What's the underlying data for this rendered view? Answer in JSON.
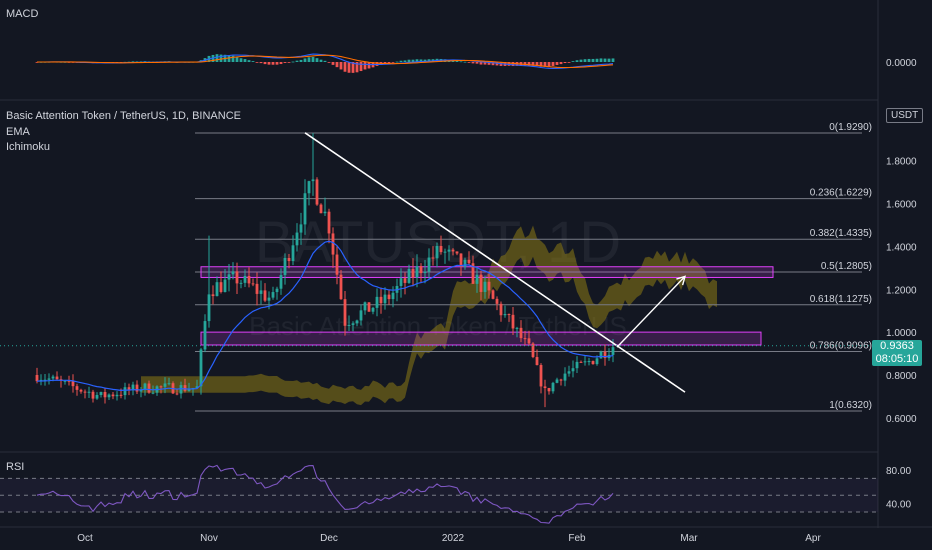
{
  "watermark": {
    "symbol": "BATUSDT, 1D",
    "name": "Basic Attention Token / TetherUS"
  },
  "macd": {
    "title": "MACD",
    "value_label": "0.0000"
  },
  "main": {
    "title": "Basic Attention Token / TetherUS, 1D, BINANCE",
    "indicator_1": "EMA",
    "indicator_2": "Ichimoku",
    "unit": "USDT",
    "last_price": "0.9363",
    "countdown": "08:05:10"
  },
  "rsi": {
    "title": "RSI",
    "upper_label": "80.00",
    "lower_label": "40.00"
  },
  "colors": {
    "background": "#131722",
    "up": "#26a69a",
    "down": "#ef5350",
    "fib_line": "#787b86",
    "zone": "#e040fb",
    "cloud": "#8d7a14",
    "ema": "#2962ff",
    "rsi": "#7e57c2",
    "macd_line": "#2962ff",
    "signal_line": "#ff6d00"
  },
  "chart_data": [
    {
      "type": "candlestick",
      "title": "Basic Attention Token / TetherUS, 1D, BINANCE",
      "y_axis_ticks": [
        "1.8000",
        "1.6000",
        "1.4000",
        "1.2000",
        "1.0000",
        "0.8000",
        "0.6000"
      ],
      "ylim": [
        0.52,
        1.98
      ],
      "x_axis_ticks": [
        "Oct",
        "Nov",
        "Dec",
        "2022",
        "Feb",
        "Mar",
        "Apr"
      ],
      "candles_range": [
        "2021-09-19",
        "2022-02-10"
      ],
      "key_levels": {
        "start_close": 0.8,
        "november_breakout_high": 1.45,
        "all_time_high": 1.929,
        "late_december_high": 1.45,
        "january_low": 0.65,
        "last_close": 0.9363
      },
      "fibonacci_levels": [
        {
          "label": "0(1.9290)",
          "value": 1.929
        },
        {
          "label": "0.236(1.6229)",
          "value": 1.6229
        },
        {
          "label": "0.382(1.4335)",
          "value": 1.4335
        },
        {
          "label": "0.5(1.2805)",
          "value": 1.2805
        },
        {
          "label": "0.618(1.1275)",
          "value": 1.1275
        },
        {
          "label": "0.786(0.9096)",
          "value": 0.9096
        },
        {
          "label": "1(0.6320)",
          "value": 0.632
        }
      ],
      "zones": [
        {
          "from": "2021-10-30",
          "to": "2022-03-22",
          "low": 1.255,
          "high": 1.305
        },
        {
          "from": "2021-10-30",
          "to": "2022-03-19",
          "low": 0.94,
          "high": 1.0
        }
      ],
      "trendline": {
        "from": {
          "date": "2021-11-25",
          "price": 1.93
        },
        "to": {
          "date": "2022-02-28",
          "price": 0.72
        }
      },
      "projection_arrow": {
        "from": {
          "date": "2022-02-11",
          "price": 0.93
        },
        "to": {
          "date": "2022-02-28",
          "price": 1.26
        }
      },
      "last_price": 0.9363
    },
    {
      "type": "line",
      "title": "MACD",
      "series": [],
      "y_axis_ticks": [
        "0.0000"
      ],
      "histogram_colors": [
        "#26a69a",
        "#ef5350"
      ]
    },
    {
      "type": "line",
      "title": "RSI",
      "y_axis_ticks": [
        "80.00",
        "40.00"
      ],
      "bands": [
        70,
        50,
        30
      ]
    }
  ]
}
